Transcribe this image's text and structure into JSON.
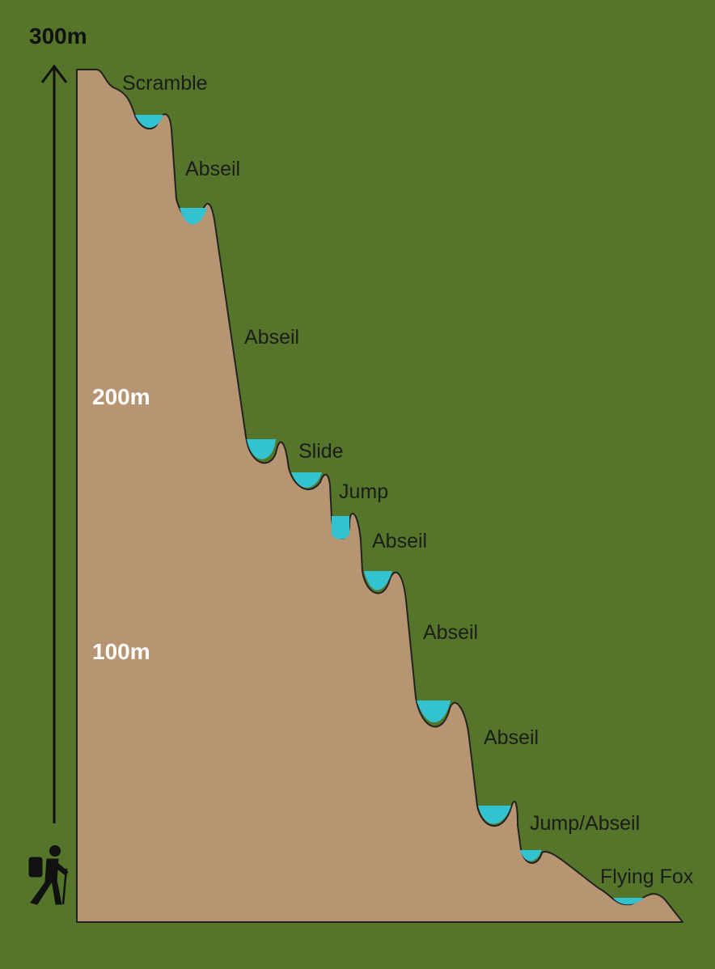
{
  "colors": {
    "background": "#55752a",
    "cliff_fill": "#b79472",
    "cliff_outline": "#222222",
    "pool_water": "#33c3d0",
    "arrow": "#111111",
    "hiker": "#111111"
  },
  "scale": {
    "top_label": "300m",
    "mid_label": "200m",
    "low_label": "100m"
  },
  "obstacles": [
    {
      "label": "Scramble"
    },
    {
      "label": "Abseil"
    },
    {
      "label": "Abseil"
    },
    {
      "label": "Slide"
    },
    {
      "label": "Jump"
    },
    {
      "label": "Abseil"
    },
    {
      "label": "Abseil"
    },
    {
      "label": "Abseil"
    },
    {
      "label": "Jump/Abseil"
    },
    {
      "label": "Flying Fox"
    }
  ],
  "icons": {
    "start": "hiker-icon",
    "direction": "up-arrow-icon"
  }
}
